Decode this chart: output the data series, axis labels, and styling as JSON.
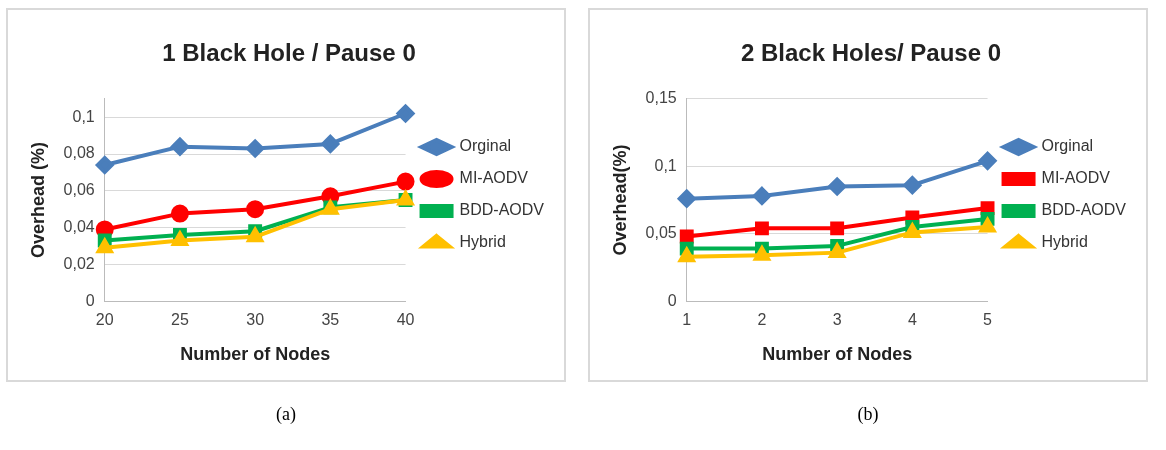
{
  "chart_data": [
    {
      "type": "line",
      "title": "1 Black Hole / Pause 0",
      "xlabel": "Number of Nodes",
      "ylabel": "Overhead (%)",
      "categories": [
        "20",
        "25",
        "30",
        "35",
        "40"
      ],
      "ylim": [
        0,
        0.11
      ],
      "yticks": [
        0,
        {
          "value": 0.02,
          "label": "0,02"
        },
        {
          "value": 0.04,
          "label": "0,04"
        },
        {
          "value": 0.06,
          "label": "0,06"
        },
        {
          "value": 0.08,
          "label": "0,08"
        },
        {
          "value": 0.1,
          "label": "0,1"
        }
      ],
      "grid": "y",
      "legend": "right",
      "annotations": [
        "(a)"
      ],
      "series": [
        {
          "name": "Orginal",
          "color": "#4a7ebb",
          "marker": "diamond",
          "values": [
            0.074,
            0.084,
            0.083,
            0.0855,
            0.102
          ]
        },
        {
          "name": "MI-AODV",
          "color": "#ff0000",
          "marker": "circle",
          "values": [
            0.039,
            0.0476,
            0.05,
            0.057,
            0.065
          ]
        },
        {
          "name": "BDD-AODV",
          "color": "#00b050",
          "marker": "square",
          "values": [
            0.033,
            0.036,
            0.038,
            0.051,
            0.055
          ]
        },
        {
          "name": "Hybrid",
          "color": "#ffc000",
          "marker": "triangle",
          "values": [
            0.029,
            0.033,
            0.035,
            0.05,
            0.055
          ]
        }
      ]
    },
    {
      "type": "line",
      "title": "2 Black Holes/ Pause 0",
      "xlabel": "Number of Nodes",
      "ylabel": "Overhead(%)",
      "categories": [
        "1",
        "2",
        "3",
        "4",
        "5"
      ],
      "ylim": [
        0,
        0.15
      ],
      "yticks": [
        0,
        {
          "value": 0.05,
          "label": "0,05"
        },
        {
          "value": 0.1,
          "label": "0,1"
        },
        {
          "value": 0.15,
          "label": "0,15"
        }
      ],
      "grid": "y",
      "legend": "right",
      "annotations": [
        "(b)"
      ],
      "series": [
        {
          "name": "Orginal",
          "color": "#4a7ebb",
          "marker": "diamond",
          "values": [
            0.076,
            0.078,
            0.085,
            0.086,
            0.104
          ]
        },
        {
          "name": "MI-AODV",
          "color": "#ff0000",
          "marker": "square",
          "values": [
            0.048,
            0.054,
            0.054,
            0.062,
            0.069
          ]
        },
        {
          "name": "BDD-AODV",
          "color": "#00b050",
          "marker": "square",
          "values": [
            0.039,
            0.039,
            0.041,
            0.055,
            0.061
          ]
        },
        {
          "name": "Hybrid",
          "color": "#ffc000",
          "marker": "triangle",
          "values": [
            0.033,
            0.034,
            0.036,
            0.051,
            0.055
          ]
        }
      ]
    }
  ]
}
